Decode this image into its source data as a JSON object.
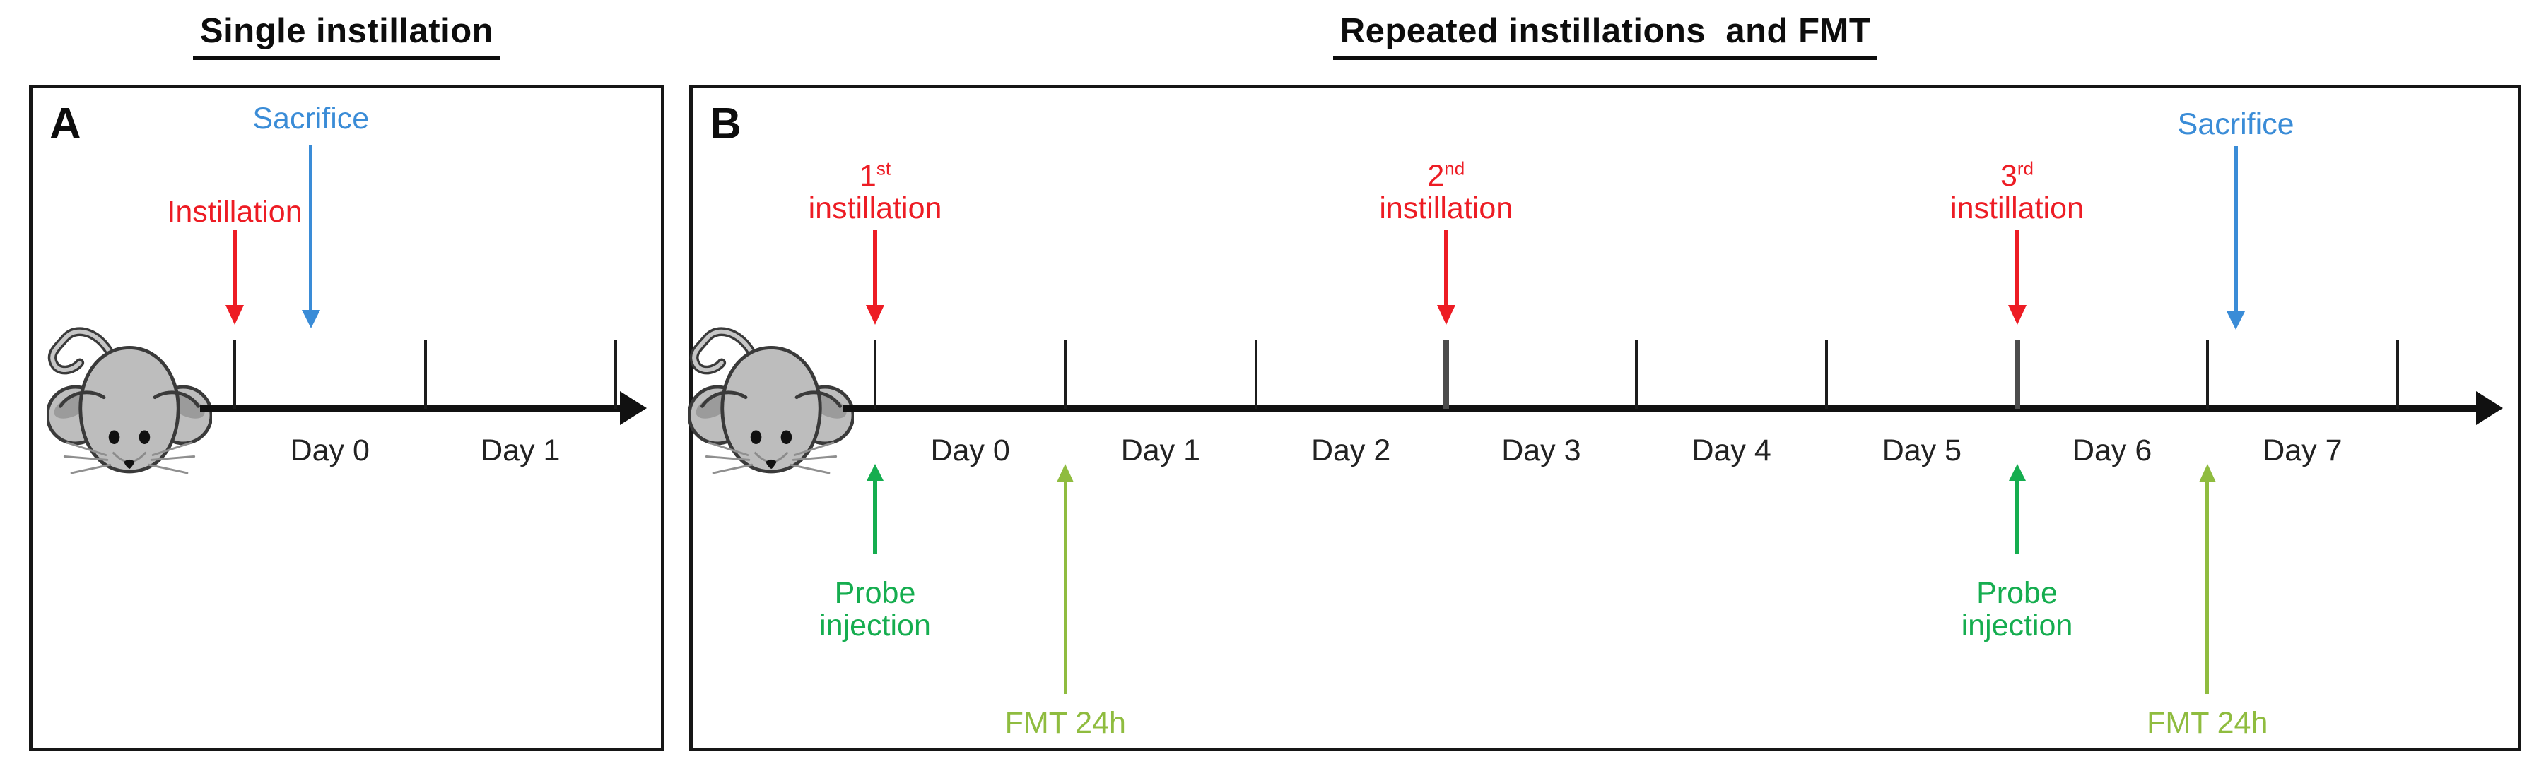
{
  "titles": {
    "panel_a": "Single instillation",
    "panel_b": "Repeated instillations  and FMT"
  },
  "colors": {
    "instillation_red": "#ed1c24",
    "sacrifice_blue": "#3a8cd7",
    "probe_green": "#15ad4f",
    "fmt_olive": "#8fbc3f",
    "timeline_black": "#111111",
    "bold_tick_gray": "#4c4c4c",
    "mouse_body_gray": "#bdbdbd",
    "mouse_shade_gray": "#9b9b9b",
    "mouse_outline_gray": "#3a3a3a"
  },
  "panel_a": {
    "letter": "A",
    "day_labels": [
      "Day 0",
      "Day 1"
    ],
    "num_ticks": 3,
    "events": {
      "instillation": {
        "label": "Instillation",
        "day": 0
      },
      "sacrifice": {
        "label": "Sacrifice",
        "day": 0.4
      }
    }
  },
  "panel_b": {
    "letter": "B",
    "day_labels": [
      "Day 0",
      "Day 1",
      "Day 2",
      "Day 3",
      "Day 4",
      "Day 5",
      "Day 6",
      "Day 7"
    ],
    "num_ticks": 9,
    "events": {
      "instillations": [
        {
          "ordinal": "1",
          "suffix": "st",
          "word": "instillation",
          "day": 0
        },
        {
          "ordinal": "2",
          "suffix": "nd",
          "word": "instillation",
          "day": 3
        },
        {
          "ordinal": "3",
          "suffix": "rd",
          "word": "instillation",
          "day": 6
        }
      ],
      "sacrifice": {
        "label": "Sacrifice",
        "day": 7.15
      },
      "probe_injection": {
        "line1": "Probe",
        "line2": "injection",
        "days": [
          0,
          6
        ]
      },
      "fmt": {
        "label": "FMT 24h",
        "days": [
          1,
          7
        ]
      }
    }
  }
}
